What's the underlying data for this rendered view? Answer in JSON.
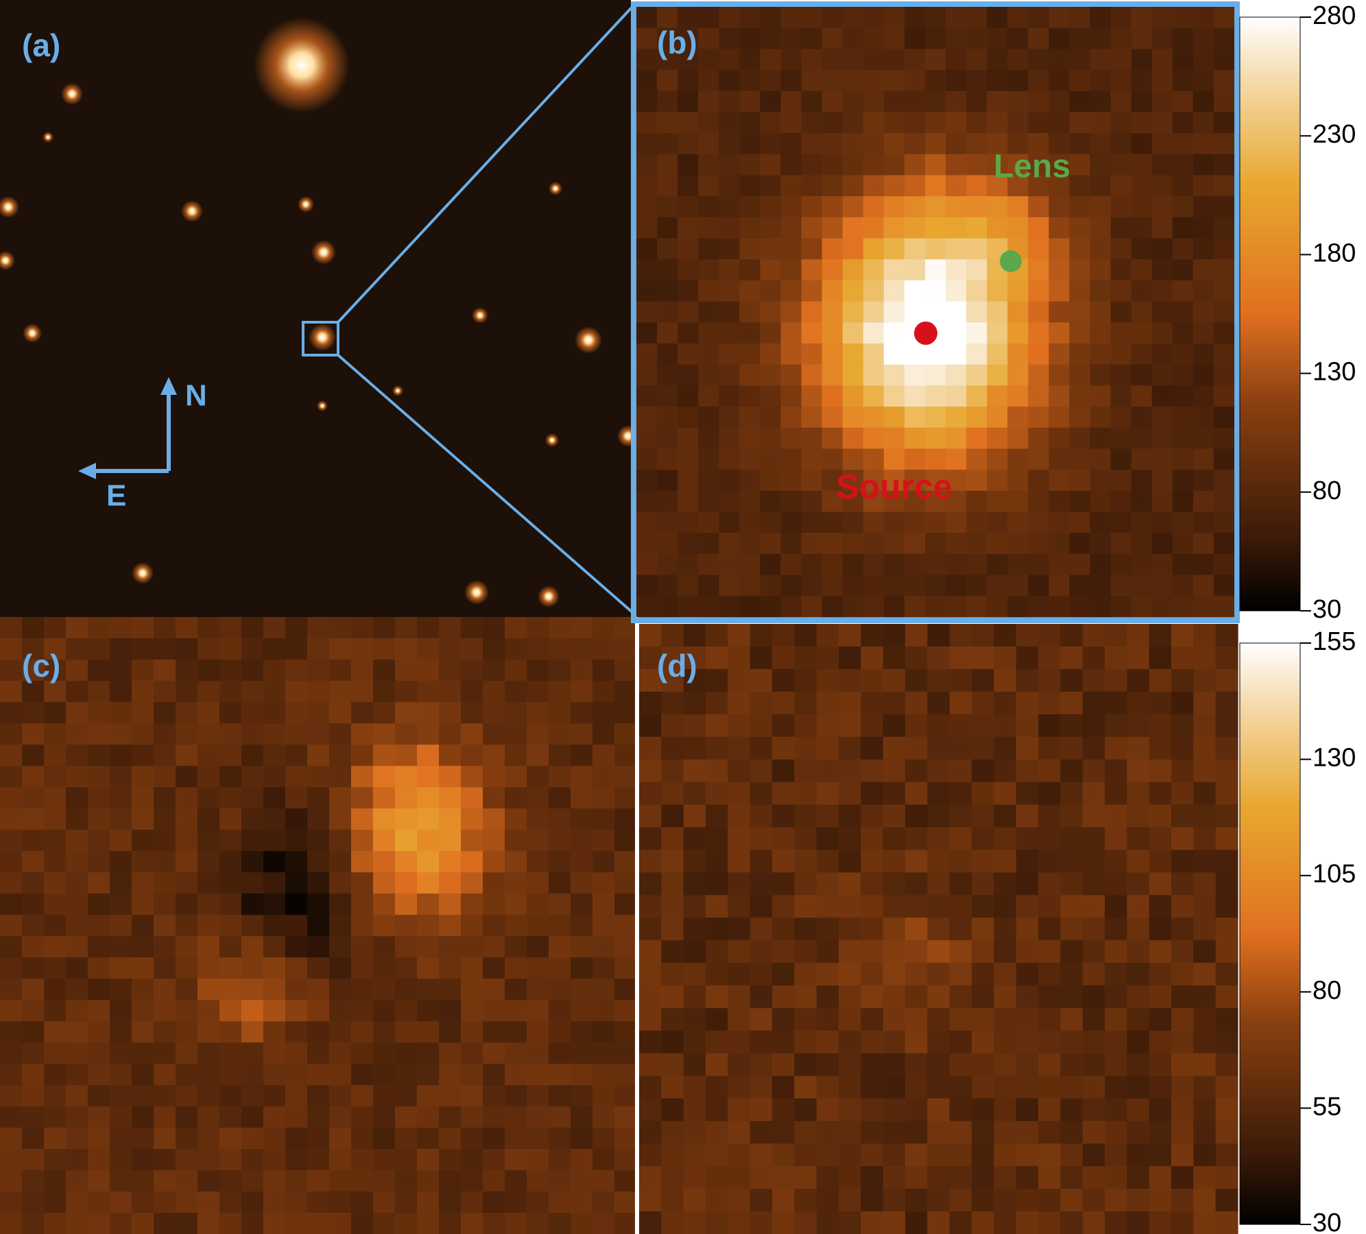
{
  "panels": [
    {
      "label": "(a)"
    },
    {
      "label": "(b)",
      "annotations": [
        "Lens",
        "Source"
      ]
    },
    {
      "label": "(c)"
    },
    {
      "label": "(d)"
    }
  ],
  "compass": {
    "north": "N",
    "east": "E"
  },
  "colorbars": [
    {
      "lim": [
        30,
        280
      ],
      "ticks": [
        280,
        230,
        180,
        130,
        80,
        30
      ]
    },
    {
      "lim": [
        30,
        155
      ],
      "ticks": [
        155,
        130,
        105,
        80,
        55,
        30
      ]
    }
  ]
}
